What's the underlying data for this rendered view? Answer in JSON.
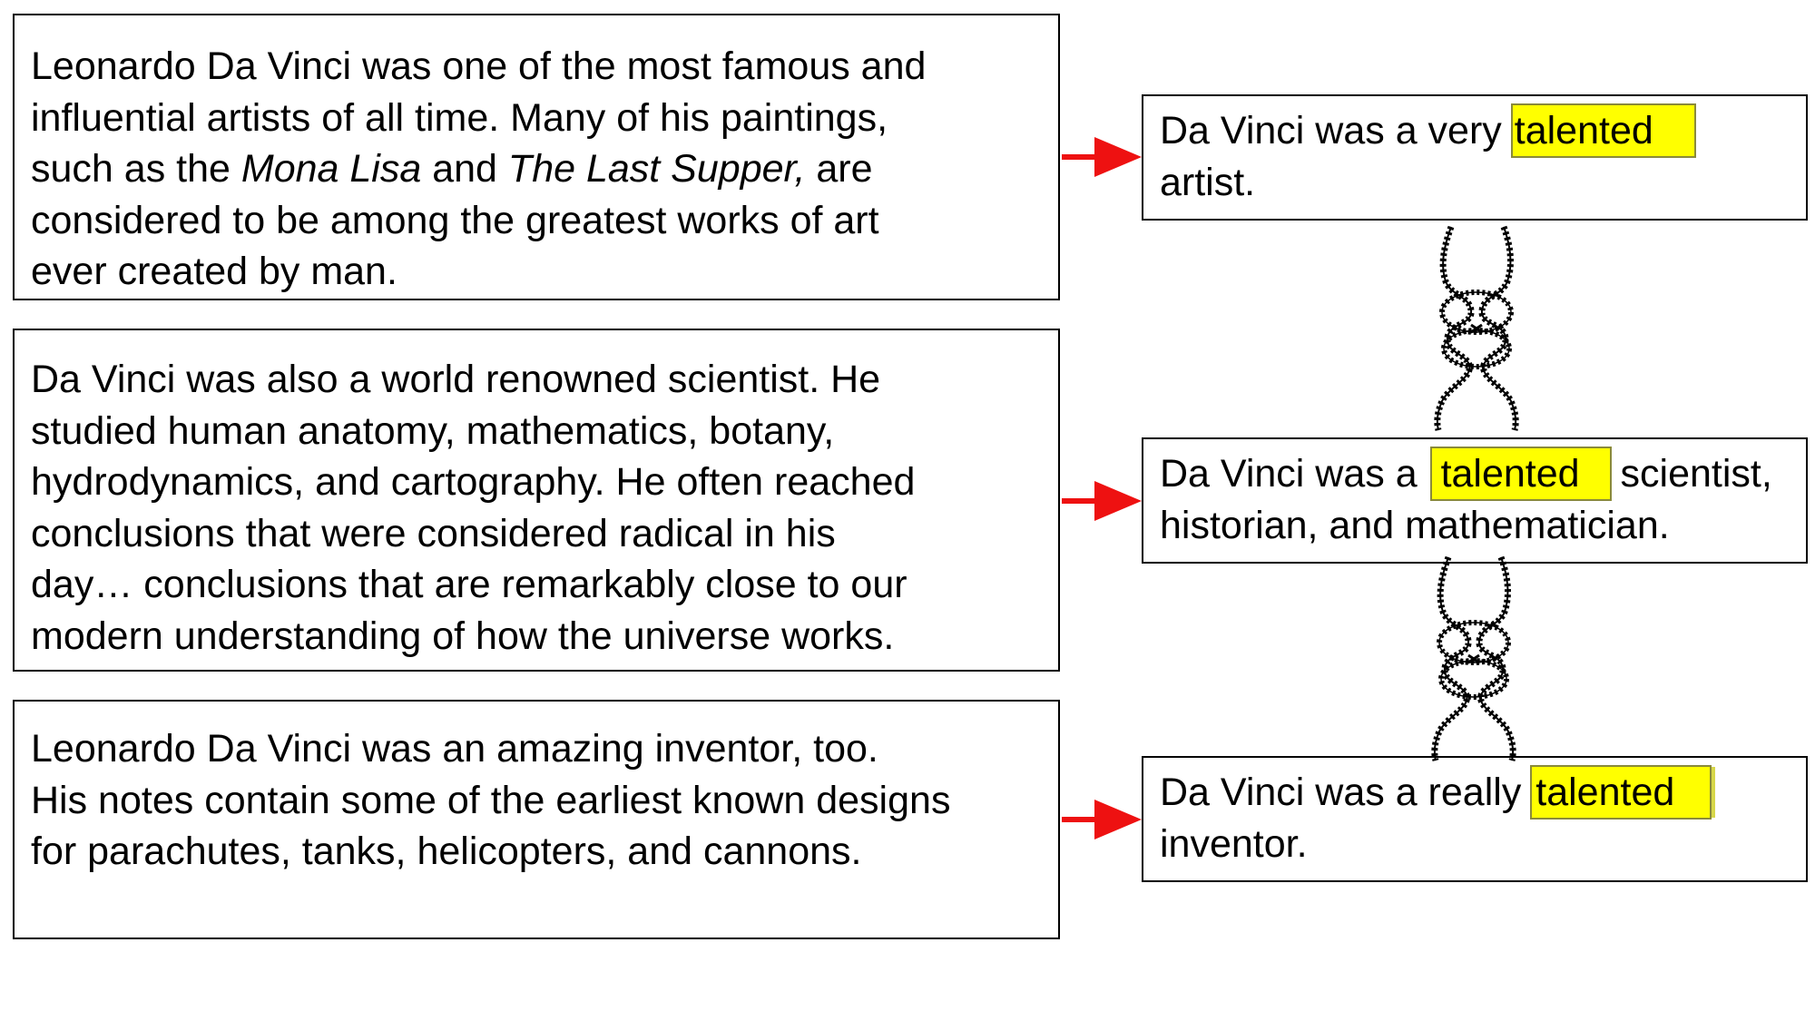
{
  "paragraphs": {
    "art": {
      "line1": "Leonardo Da Vinci was one of the most famous and",
      "line2": "influential artists of all time.  Many of his paintings,",
      "line3_pre": "such as the ",
      "line3_italic1": "Mona Lisa",
      "line3_mid": " and ",
      "line3_italic2": "The Last Supper,",
      "line3_post": " are",
      "line4": "considered to be among the greatest works of art",
      "line5": "ever created by man."
    },
    "science": "Da Vinci was also a world renowned  scientist.  He\nstudied human anatomy, mathematics, botany,\nhydrodynamics, and cartography.  He often reached\nconclusions  that were considered radical in his\nday… conclusions that are remarkably close to our\nmodern understanding of how the universe works.",
    "invention": "Leonardo Da Vinci was an amazing inventor, too.\nHis notes contain some of the earliest known designs\nfor parachutes, tanks, helicopters, and cannons."
  },
  "summaries": {
    "artist": {
      "pre": "Da Vinci was a very ",
      "highlight": "talented",
      "line2": "artist."
    },
    "scientist": {
      "pre": "Da Vinci was a ",
      "highlight": "talented",
      "post": " scientist,",
      "line2": "historian, and mathematician."
    },
    "inventor": {
      "pre": "Da Vinci was a really ",
      "highlight": "talented",
      "line2": "inventor."
    }
  },
  "colors": {
    "arrow": "#ee1111",
    "highlight": "#ffff00",
    "border": "#000000"
  },
  "icons": [
    "right-arrow-icon",
    "rope-knot-icon"
  ]
}
